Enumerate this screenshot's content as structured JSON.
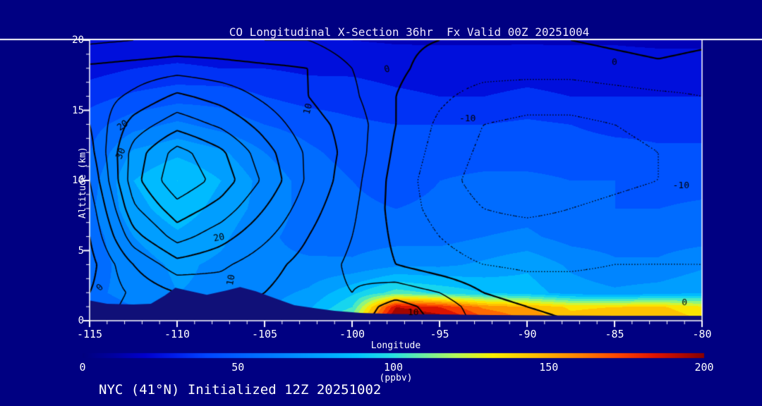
{
  "title": "CO Longitudinal X-Section 36hr  Fx Valid 00Z 20251004",
  "footer": "NYC (41°N) Initialized 12Z 20251002",
  "colors": {
    "background": "#000082",
    "axis": "#FFFFFF",
    "title_text": "#EDE6FC",
    "footer_text": "#FFFFFF",
    "contour_line": "#000000",
    "terrain": "#101078"
  },
  "axes": {
    "x": {
      "label": "Longitude",
      "min": -115,
      "max": -80,
      "major_ticks": [
        -115,
        -110,
        -105,
        -100,
        -95,
        -90,
        -85,
        -80
      ],
      "minor_step": 1
    },
    "y": {
      "label": "Altitude (km)",
      "min": 0,
      "max": 20,
      "major_ticks": [
        0,
        5,
        10,
        15,
        20
      ],
      "minor_step": 1
    }
  },
  "colorbar": {
    "min": 0,
    "max": 200,
    "ticks": [
      0,
      50,
      100,
      150,
      200
    ],
    "units": "(ppbv)",
    "palette": [
      [
        0.0,
        0,
        0,
        126
      ],
      [
        0.05,
        0,
        0,
        160
      ],
      [
        0.1,
        0,
        0,
        205
      ],
      [
        0.15,
        0,
        30,
        235
      ],
      [
        0.2,
        0,
        70,
        255
      ],
      [
        0.28,
        0,
        110,
        255
      ],
      [
        0.36,
        0,
        150,
        255
      ],
      [
        0.44,
        0,
        195,
        255
      ],
      [
        0.5,
        40,
        225,
        225
      ],
      [
        0.55,
        110,
        240,
        160
      ],
      [
        0.6,
        180,
        250,
        90
      ],
      [
        0.66,
        250,
        240,
        0
      ],
      [
        0.73,
        255,
        190,
        0
      ],
      [
        0.8,
        255,
        130,
        0
      ],
      [
        0.86,
        255,
        70,
        0
      ],
      [
        0.92,
        225,
        20,
        0
      ],
      [
        1.0,
        135,
        0,
        0
      ]
    ]
  },
  "chart_data": {
    "type": "heatmap",
    "subtype": "filled-contour-cross-section",
    "x_lon": [
      -115,
      -112.5,
      -110,
      -107.5,
      -105,
      -102.5,
      -100,
      -97.5,
      -95,
      -92.5,
      -90,
      -87.5,
      -85,
      -82.5,
      -80
    ],
    "z_km": [
      0,
      1,
      2,
      4,
      6,
      8,
      10,
      12,
      14,
      16,
      18,
      20
    ],
    "fill_ppbv": [
      [
        55,
        60,
        65,
        65,
        70,
        85,
        120,
        210,
        200,
        175,
        160,
        145,
        150,
        150,
        140
      ],
      [
        55,
        60,
        65,
        65,
        68,
        78,
        100,
        190,
        180,
        158,
        150,
        138,
        140,
        142,
        132
      ],
      [
        58,
        63,
        70,
        68,
        66,
        72,
        88,
        105,
        98,
        90,
        85,
        75,
        72,
        75,
        80
      ],
      [
        55,
        65,
        72,
        68,
        62,
        62,
        62,
        68,
        68,
        72,
        78,
        68,
        62,
        62,
        68
      ],
      [
        55,
        70,
        78,
        72,
        62,
        56,
        55,
        56,
        56,
        60,
        62,
        56,
        55,
        55,
        56
      ],
      [
        58,
        76,
        86,
        76,
        66,
        56,
        52,
        50,
        52,
        55,
        56,
        52,
        50,
        50,
        52
      ],
      [
        55,
        80,
        90,
        80,
        66,
        56,
        50,
        46,
        50,
        52,
        52,
        50,
        50,
        46,
        46
      ],
      [
        50,
        72,
        78,
        72,
        60,
        52,
        46,
        45,
        46,
        46,
        46,
        46,
        45,
        42,
        42
      ],
      [
        46,
        56,
        62,
        56,
        50,
        46,
        42,
        40,
        40,
        40,
        42,
        40,
        36,
        36,
        36
      ],
      [
        36,
        42,
        46,
        46,
        40,
        36,
        35,
        32,
        30,
        30,
        32,
        30,
        30,
        30,
        30
      ],
      [
        26,
        30,
        32,
        30,
        30,
        28,
        28,
        26,
        25,
        25,
        26,
        25,
        25,
        25,
        25
      ],
      [
        20,
        21,
        22,
        22,
        22,
        21,
        20,
        19,
        19,
        19,
        19,
        19,
        19,
        18,
        18
      ]
    ],
    "overlay_contour_values": [
      [
        2,
        8,
        12,
        10,
        8,
        6,
        8,
        13,
        9,
        3,
        1,
        0,
        0,
        0,
        -1
      ],
      [
        1,
        7,
        11,
        11,
        9,
        6,
        7,
        12,
        8,
        2,
        0,
        -1,
        -1,
        -1,
        -2
      ],
      [
        0,
        6,
        10,
        12,
        10,
        7,
        5,
        8,
        5,
        0,
        -2,
        -2,
        -2,
        -2,
        -3
      ],
      [
        -2,
        10,
        18,
        16,
        12,
        8,
        4,
        0,
        -3,
        -5,
        -6,
        -6,
        -5,
        -5,
        -5
      ],
      [
        0,
        18,
        27,
        22,
        16,
        10,
        5,
        -1,
        -5,
        -8,
        -8,
        -8,
        -7,
        -6,
        -6
      ],
      [
        2,
        24,
        33,
        28,
        20,
        12,
        6,
        -2,
        -7,
        -10,
        -11,
        -10,
        -9,
        -8,
        -8
      ],
      [
        5,
        28,
        39,
        33,
        24,
        14,
        7,
        -2,
        -8,
        -12,
        -12,
        -12,
        -11,
        -10,
        -9
      ],
      [
        8,
        27,
        37,
        31,
        22,
        14,
        8,
        -1,
        -7,
        -11,
        -12,
        -12,
        -11,
        -10,
        -9
      ],
      [
        10,
        22,
        28,
        24,
        18,
        12,
        8,
        0,
        -6,
        -10,
        -11,
        -11,
        -10,
        -9,
        -8
      ],
      [
        12,
        16,
        21,
        18,
        14,
        10,
        6,
        0,
        -4,
        -7,
        -8,
        -8,
        -7,
        -6,
        -5
      ],
      [
        11,
        12,
        13,
        12,
        11,
        10,
        5,
        1,
        -2,
        -3,
        -3,
        -3,
        -2,
        -1,
        -2
      ],
      [
        4,
        5,
        6,
        6,
        5,
        5,
        2,
        1,
        0,
        -1,
        -1,
        0,
        1,
        2,
        1
      ]
    ],
    "overlay_levels_solid": [
      5,
      10,
      15,
      20,
      25,
      30,
      35
    ],
    "overlay_levels_zero": [
      0
    ],
    "overlay_levels_dotted": [
      -15,
      -10,
      -5
    ],
    "terrain_km": [
      [
        -115,
        1.45
      ],
      [
        -114,
        1.2
      ],
      [
        -112.5,
        1.15
      ],
      [
        -111.5,
        1.2
      ],
      [
        -110.7,
        1.8
      ],
      [
        -110.1,
        2.35
      ],
      [
        -109.4,
        2.15
      ],
      [
        -108.3,
        1.85
      ],
      [
        -107.2,
        2.15
      ],
      [
        -106.4,
        2.4
      ],
      [
        -105.5,
        2.1
      ],
      [
        -104.4,
        1.6
      ],
      [
        -103.3,
        1.1
      ],
      [
        -102.2,
        0.9
      ],
      [
        -101,
        0.7
      ],
      [
        -99.5,
        0.55
      ],
      [
        -97.5,
        0.48
      ],
      [
        -95,
        0.45
      ],
      [
        -92,
        0.4
      ],
      [
        -89,
        0.38
      ],
      [
        -85,
        0.35
      ],
      [
        -80,
        0.35
      ]
    ],
    "line_labels": [
      {
        "lon": -113.1,
        "km": 13.9,
        "text": "20",
        "rot": -35
      },
      {
        "lon": -113.2,
        "km": 11.9,
        "text": "30",
        "rot": -65
      },
      {
        "lon": -107.6,
        "km": 5.9,
        "text": "20",
        "rot": -12
      },
      {
        "lon": -106.9,
        "km": 2.9,
        "text": "10",
        "rot": -80
      },
      {
        "lon": -114.4,
        "km": 2.35,
        "text": "0",
        "rot": -45
      },
      {
        "lon": -102.5,
        "km": 15.1,
        "text": "10",
        "rot": -75
      },
      {
        "lon": -98.0,
        "km": 17.9,
        "text": "0",
        "rot": -15
      },
      {
        "lon": -96.5,
        "km": 0.55,
        "text": "10",
        "rot": 0
      },
      {
        "lon": -93.4,
        "km": 14.4,
        "text": "-10",
        "rot": 0
      },
      {
        "lon": -81.2,
        "km": 9.6,
        "text": "-10",
        "rot": 0
      },
      {
        "lon": -85.0,
        "km": 18.4,
        "text": "0",
        "rot": 0
      },
      {
        "lon": -81.0,
        "km": 1.3,
        "text": "0",
        "rot": 0
      }
    ]
  }
}
